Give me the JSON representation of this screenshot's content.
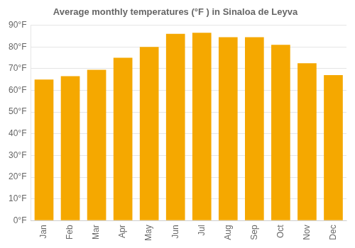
{
  "chart_data": {
    "type": "bar",
    "title": "Average monthly temperatures (°F ) in Sinaloa de Leyva",
    "categories": [
      "Jan",
      "Feb",
      "Mar",
      "Apr",
      "May",
      "Jun",
      "Jul",
      "Aug",
      "Sep",
      "Oct",
      "Nov",
      "Dec"
    ],
    "values": [
      65,
      66.5,
      69.5,
      75,
      80,
      86,
      86.5,
      84.5,
      84.5,
      81,
      72.5,
      67
    ],
    "color": "#F5A800",
    "ylim": [
      0,
      90
    ],
    "yticks": [
      {
        "value": 0,
        "label": "0°F"
      },
      {
        "value": 10,
        "label": "10°F"
      },
      {
        "value": 20,
        "label": "20°F"
      },
      {
        "value": 30,
        "label": "30°F"
      },
      {
        "value": 40,
        "label": "40°F"
      },
      {
        "value": 50,
        "label": "50°F"
      },
      {
        "value": 60,
        "label": "60°F"
      },
      {
        "value": 70,
        "label": "70°F"
      },
      {
        "value": 80,
        "label": "80°F"
      },
      {
        "value": 90,
        "label": "90°F"
      }
    ],
    "grid": "y"
  }
}
